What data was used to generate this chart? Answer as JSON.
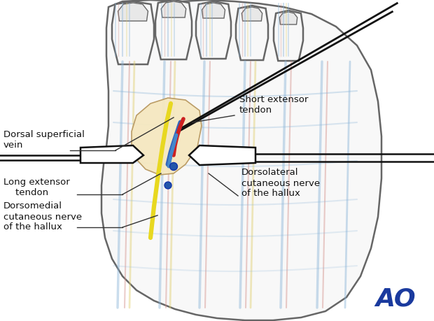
{
  "figsize": [
    6.2,
    4.59
  ],
  "dpi": 100,
  "bg_color": "#ffffff",
  "labels": {
    "dorsal_superficial_vein": "Dorsal superficial\nvein",
    "short_extensor_tendon": "Short extensor\ntendon",
    "long_extensor_tendon": "Long extensor\n    tendon",
    "dorsomedial_nerve": "Dorsomedial\ncutaneous nerve\nof the hallux",
    "dorsolateral_nerve": "Dorsolateral\ncutaneous nerve\nof the hallux"
  },
  "ao_color": "#1a3a9e",
  "foot_outline_color": "#888888",
  "foot_fill_color": "#ffffff",
  "nerve_yellow_color": "#e8d820",
  "vein_blue_color": "#4a7fcc",
  "artery_red_color": "#cc2222",
  "wound_fill_color": "#f5e8c0",
  "retractor_white": "#ffffff",
  "retractor_edge": "#111111"
}
